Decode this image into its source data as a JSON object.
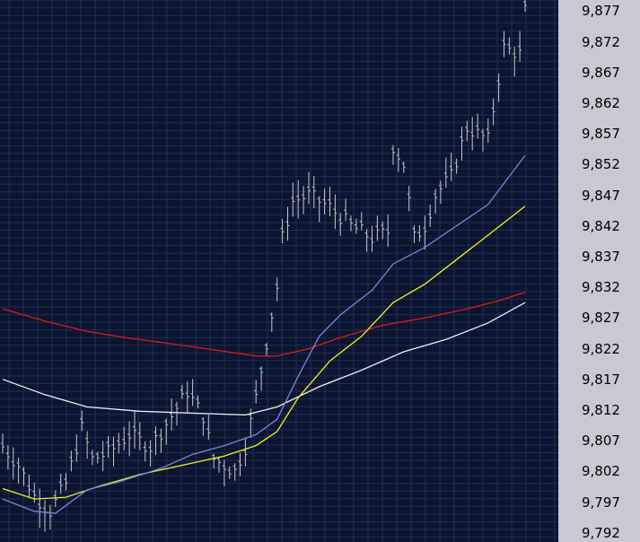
{
  "colors": {
    "background": "#0b1530",
    "grid": "#1f2e52",
    "axis_panel": "#c9c9d3",
    "price_bars": "#c8c8c8",
    "ma_white": "#f0f0f0",
    "ma_red": "#e01818",
    "ma_yellow": "#f0f020",
    "ma_blue": "#7a86d8"
  },
  "chart_data": {
    "type": "line",
    "title": "",
    "xlabel": "",
    "ylabel": "",
    "ylim": [
      9.7905,
      9.8788
    ],
    "ytick_step": 0.005,
    "grid": true,
    "y_tick_labels": [
      "9,877",
      "9,872",
      "9,867",
      "9,862",
      "9,857",
      "9,852",
      "9,847",
      "9,842",
      "9,837",
      "9,832",
      "9,827",
      "9,822",
      "9,817",
      "9,812",
      "9,807",
      "9,802",
      "9,797",
      "9,792"
    ],
    "x_count": 100,
    "price_bar_keypoints": [
      [
        0,
        9.806
      ],
      [
        3,
        9.803
      ],
      [
        6,
        9.798
      ],
      [
        9,
        9.7955
      ],
      [
        12,
        9.8
      ],
      [
        14,
        9.806
      ],
      [
        15,
        9.809
      ],
      [
        17,
        9.804
      ],
      [
        20,
        9.805
      ],
      [
        24,
        9.808
      ],
      [
        28,
        9.806
      ],
      [
        32,
        9.811
      ],
      [
        35,
        9.815
      ],
      [
        38,
        9.811
      ],
      [
        40,
        9.804
      ],
      [
        42,
        9.803
      ],
      [
        44,
        9.802
      ],
      [
        46,
        9.806
      ],
      [
        48,
        9.814
      ],
      [
        50,
        9.823
      ],
      [
        52,
        9.832
      ],
      [
        53,
        9.84
      ],
      [
        55,
        9.846
      ],
      [
        58,
        9.847
      ],
      [
        62,
        9.845
      ],
      [
        66,
        9.842
      ],
      [
        70,
        9.84
      ],
      [
        73,
        9.841
      ],
      [
        74,
        9.855
      ],
      [
        76,
        9.852
      ],
      [
        78,
        9.84
      ],
      [
        80,
        9.842
      ],
      [
        82,
        9.847
      ],
      [
        85,
        9.85
      ],
      [
        88,
        9.858
      ],
      [
        90,
        9.857
      ],
      [
        92,
        9.856
      ],
      [
        95,
        9.871
      ],
      [
        98,
        9.87
      ],
      [
        99,
        9.877
      ]
    ],
    "series": [
      {
        "color_key": "ma_white",
        "points": [
          [
            0,
            9.817
          ],
          [
            8,
            9.8145
          ],
          [
            16,
            9.8125
          ],
          [
            26,
            9.8118
          ],
          [
            36,
            9.8115
          ],
          [
            46,
            9.8112
          ],
          [
            52,
            9.8125
          ],
          [
            60,
            9.8158
          ],
          [
            68,
            9.8185
          ],
          [
            76,
            9.8215
          ],
          [
            84,
            9.8235
          ],
          [
            92,
            9.8262
          ],
          [
            99,
            9.8295
          ]
        ]
      },
      {
        "color_key": "ma_red",
        "points": [
          [
            0,
            9.8285
          ],
          [
            8,
            9.8265
          ],
          [
            16,
            9.8248
          ],
          [
            24,
            9.8237
          ],
          [
            32,
            9.8228
          ],
          [
            40,
            9.8218
          ],
          [
            48,
            9.8208
          ],
          [
            52,
            9.8208
          ],
          [
            58,
            9.822
          ],
          [
            64,
            9.8238
          ],
          [
            72,
            9.8258
          ],
          [
            80,
            9.827
          ],
          [
            88,
            9.8285
          ],
          [
            94,
            9.8298
          ],
          [
            99,
            9.8312
          ]
        ]
      },
      {
        "color_key": "ma_yellow",
        "points": [
          [
            0,
            9.7992
          ],
          [
            6,
            9.7975
          ],
          [
            12,
            9.7978
          ],
          [
            18,
            9.7995
          ],
          [
            26,
            9.8015
          ],
          [
            34,
            9.803
          ],
          [
            42,
            9.8045
          ],
          [
            48,
            9.8062
          ],
          [
            52,
            9.8085
          ],
          [
            56,
            9.814
          ],
          [
            62,
            9.82
          ],
          [
            68,
            9.824
          ],
          [
            74,
            9.8295
          ],
          [
            80,
            9.8325
          ],
          [
            86,
            9.8365
          ],
          [
            92,
            9.8405
          ],
          [
            99,
            9.8452
          ]
        ]
      },
      {
        "color_key": "ma_blue",
        "points": [
          [
            0,
            9.7975
          ],
          [
            6,
            9.7955
          ],
          [
            10,
            9.7952
          ],
          [
            16,
            9.799
          ],
          [
            22,
            9.8003
          ],
          [
            30,
            9.8025
          ],
          [
            36,
            9.8048
          ],
          [
            42,
            9.8062
          ],
          [
            48,
            9.808
          ],
          [
            52,
            9.8105
          ],
          [
            56,
            9.8175
          ],
          [
            60,
            9.824
          ],
          [
            64,
            9.8275
          ],
          [
            70,
            9.8315
          ],
          [
            74,
            9.8358
          ],
          [
            80,
            9.8385
          ],
          [
            86,
            9.842
          ],
          [
            92,
            9.8455
          ],
          [
            99,
            9.8535
          ]
        ]
      }
    ]
  }
}
